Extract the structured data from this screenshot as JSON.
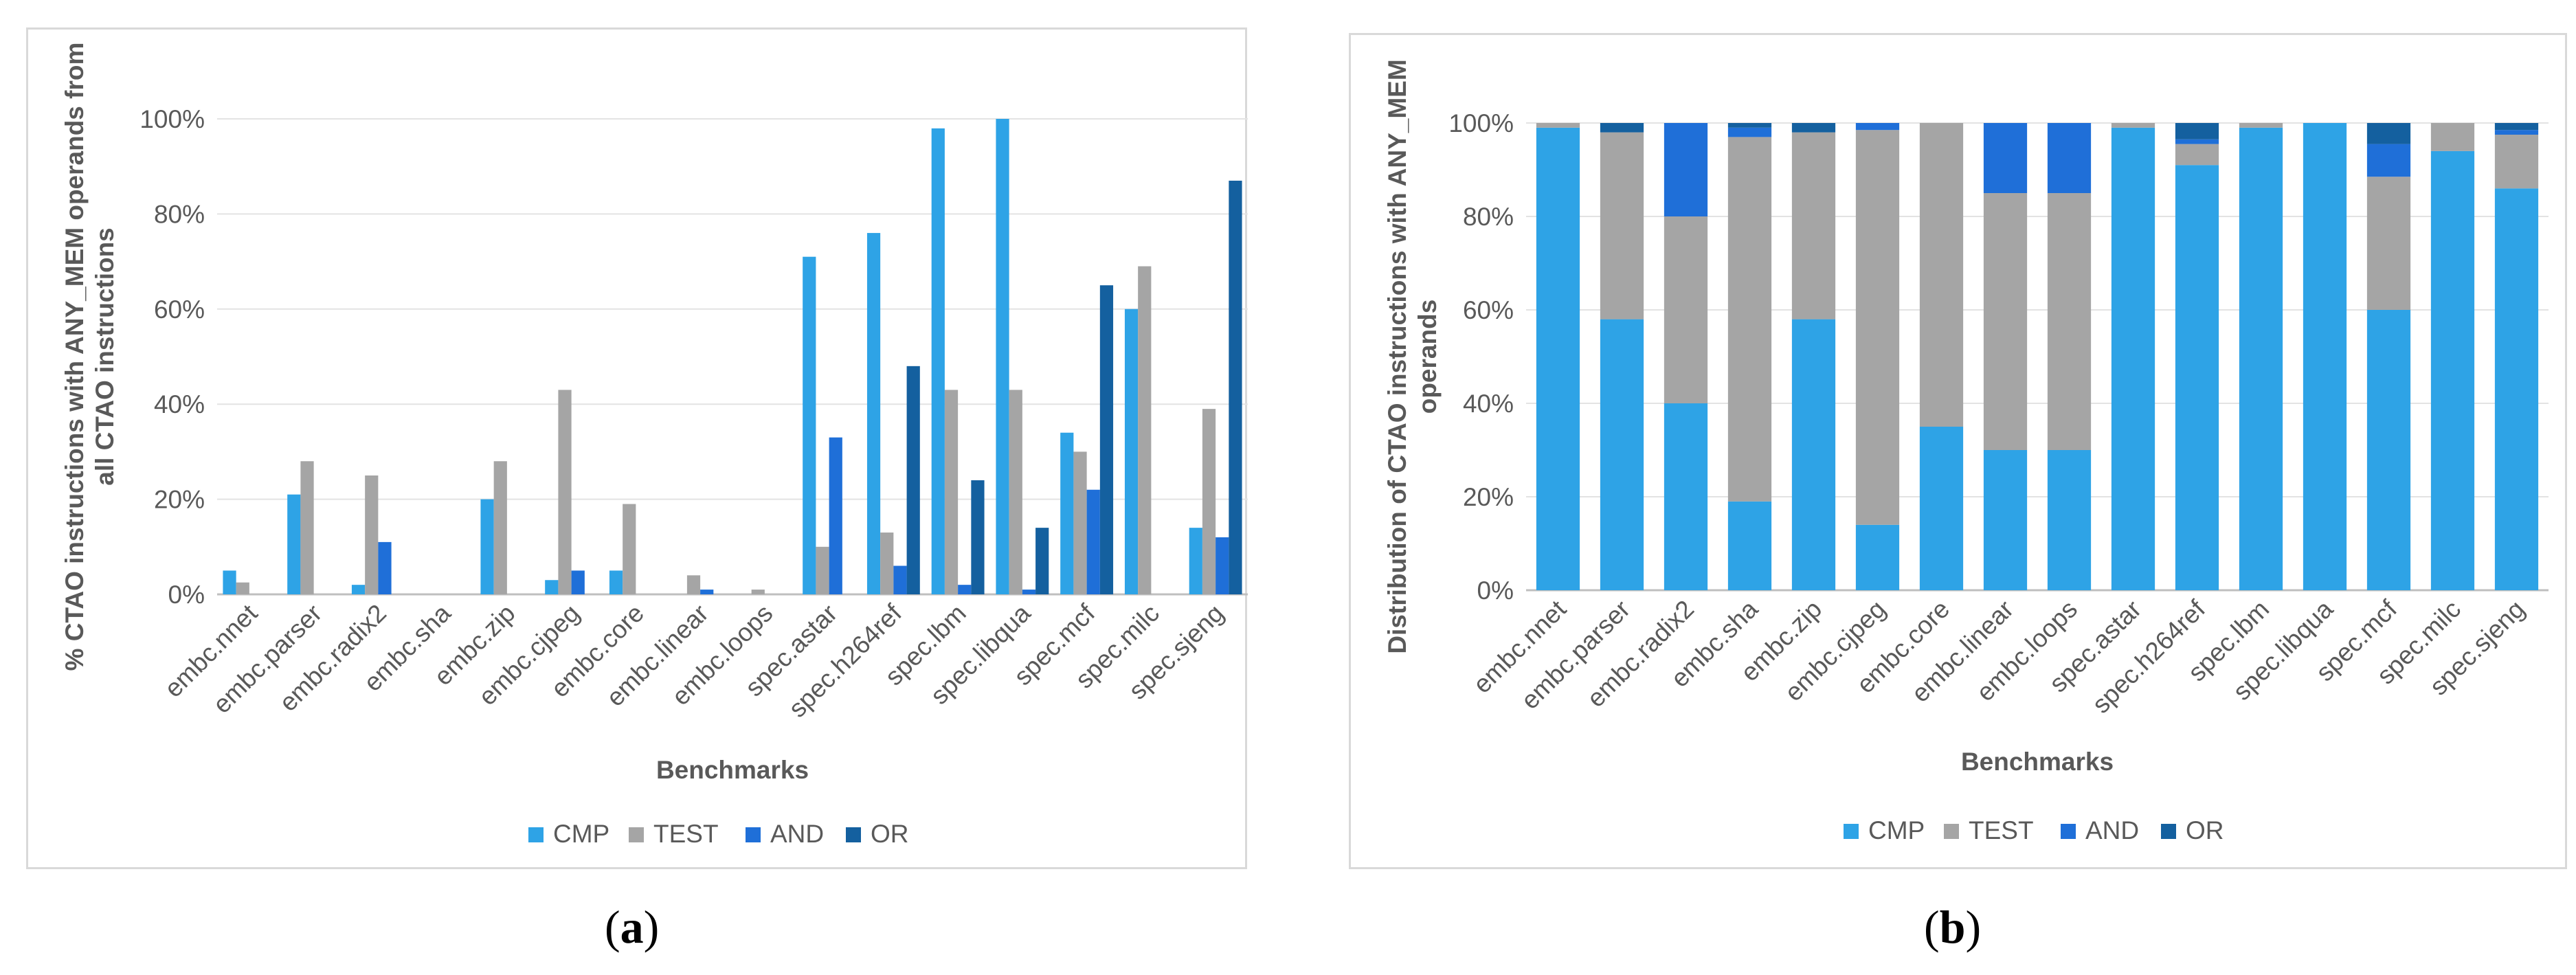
{
  "chart_data": [
    {
      "panel": "a",
      "type": "bar",
      "title": "",
      "xlabel": "Benchmarks",
      "ylabel_lines": [
        "% CTAO instructions with ANY_MEM operands from",
        "all CTAO instructions"
      ],
      "ylim": [
        0,
        100
      ],
      "yticks": [
        "0%",
        "20%",
        "40%",
        "60%",
        "80%",
        "100%"
      ],
      "categories": [
        "embc.nnet",
        "embc.parser",
        "embc.radix2",
        "embc.sha",
        "embc.zip",
        "embc.cjpeg",
        "embc.core",
        "embc.linear",
        "embc.loops",
        "spec.astar",
        "spec.h264ref",
        "spec.lbm",
        "spec.libqua",
        "spec.mcf",
        "spec.milc",
        "spec.sjeng"
      ],
      "series": [
        {
          "name": "CMP",
          "color": "#2ea3e6",
          "values": [
            5,
            21,
            2,
            0,
            20,
            3,
            5,
            0,
            0,
            71,
            76,
            98,
            100,
            34,
            60,
            14
          ]
        },
        {
          "name": "TEST",
          "color": "#a5a5a5",
          "values": [
            2.5,
            28,
            25,
            0,
            28,
            43,
            19,
            4,
            1,
            10,
            13,
            43,
            43,
            30,
            69,
            39
          ]
        },
        {
          "name": "AND",
          "color": "#1f6fd8",
          "values": [
            0,
            0,
            11,
            0,
            0,
            5,
            0,
            1,
            0,
            33,
            6,
            2,
            1,
            22,
            0,
            12
          ]
        },
        {
          "name": "OR",
          "color": "#14609f",
          "values": [
            0,
            0,
            0,
            0,
            0,
            0,
            0,
            0,
            0,
            0,
            48,
            24,
            14,
            65,
            0,
            87
          ]
        }
      ],
      "legend_position": "bottom"
    },
    {
      "panel": "b",
      "type": "bar",
      "stacked": true,
      "title": "",
      "xlabel": "Benchmarks",
      "ylabel_lines": [
        "Distribution of CTAO instructions with ANY_MEM",
        "operands"
      ],
      "ylim": [
        0,
        100
      ],
      "yticks": [
        "0%",
        "20%",
        "40%",
        "60%",
        "80%",
        "100%"
      ],
      "categories": [
        "embc.nnet",
        "embc.parser",
        "embc.radix2",
        "embc.sha",
        "embc.zip",
        "embc.cjpeg",
        "embc.core",
        "embc.linear",
        "embc.loops",
        "spec.astar",
        "spec.h264ref",
        "spec.lbm",
        "spec.libqua",
        "spec.mcf",
        "spec.milc",
        "spec.sjeng"
      ],
      "series": [
        {
          "name": "CMP",
          "color": "#2ea3e6",
          "values": [
            99,
            58,
            40,
            19,
            58,
            14,
            35,
            30,
            30,
            99,
            91,
            99,
            100,
            60,
            94,
            86
          ]
        },
        {
          "name": "TEST",
          "color": "#a5a5a5",
          "values": [
            1,
            40,
            40,
            78,
            40,
            84.5,
            65,
            55,
            55,
            1,
            4.5,
            1,
            0,
            28.5,
            6,
            11.5
          ]
        },
        {
          "name": "AND",
          "color": "#1f6fd8",
          "values": [
            0,
            0,
            20,
            2,
            0,
            1.5,
            0,
            15,
            15,
            0,
            1,
            0,
            0,
            7,
            0,
            1
          ]
        },
        {
          "name": "OR",
          "color": "#14609f",
          "values": [
            0,
            2,
            0,
            1,
            2,
            0,
            0,
            0,
            0,
            0,
            3.5,
            0,
            0,
            4.5,
            0,
            1.5
          ]
        }
      ],
      "legend_position": "bottom"
    }
  ],
  "captions": {
    "a": "a",
    "b": "b"
  }
}
